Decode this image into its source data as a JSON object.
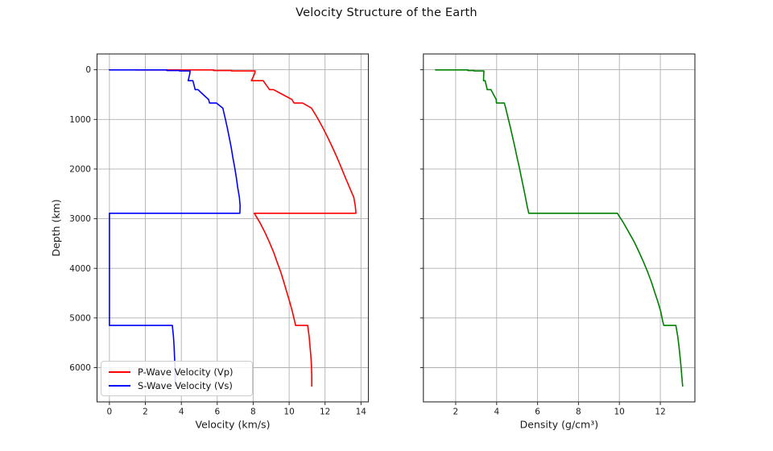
{
  "title": "Velocity Structure of the Earth",
  "colors": {
    "p_wave": "#ff0000",
    "s_wave": "#0000ff",
    "density": "#008000",
    "grid": "#b0b0b0",
    "spine": "#2b2b2b",
    "text": "#1a1a1a"
  },
  "chart_data": [
    {
      "type": "line",
      "title": "",
      "xlabel": "Velocity (km/s)",
      "ylabel": "Depth (km)",
      "xlim": [
        -0.69,
        14.41
      ],
      "ylim": [
        -318.6,
        6689.6
      ],
      "y_inverted": true,
      "grid": true,
      "xticks": [
        0,
        2,
        4,
        6,
        8,
        10,
        12,
        14
      ],
      "yticks": [
        0,
        1000,
        2000,
        3000,
        4000,
        5000,
        6000
      ],
      "show_ytick_labels": true,
      "legend_location": "lower left",
      "depths_km": [
        0,
        3,
        3,
        15,
        15,
        24.4,
        24.4,
        80,
        220,
        220,
        310,
        400,
        400,
        500,
        600,
        670,
        670,
        771,
        971,
        1171,
        1371,
        1571,
        1771,
        1971,
        2171,
        2371,
        2571,
        2741,
        2891,
        2891,
        3071,
        3271,
        3471,
        3671,
        3871,
        4071,
        4271,
        4471,
        4671,
        4871,
        5071,
        5149.5,
        5149.5,
        5371,
        5571,
        5771,
        5971,
        6171,
        6371
      ],
      "series": [
        {
          "id": "p-wave",
          "name": "P-Wave Velocity (Vp)",
          "color": "#ff0000",
          "values": [
            1.45,
            1.45,
            5.8,
            5.8,
            6.8,
            6.8,
            8.11,
            8.08,
            7.9,
            8.56,
            8.73,
            8.91,
            9.13,
            9.65,
            10.16,
            10.27,
            10.75,
            11.24,
            11.58,
            11.88,
            12.16,
            12.42,
            12.67,
            12.9,
            13.13,
            13.36,
            13.6,
            13.68,
            13.72,
            8.06,
            8.36,
            8.65,
            8.9,
            9.13,
            9.33,
            9.53,
            9.7,
            9.86,
            10.03,
            10.18,
            10.31,
            10.36,
            11.03,
            11.11,
            11.16,
            11.21,
            11.24,
            11.26,
            11.26
          ]
        },
        {
          "id": "s-wave",
          "name": "S-Wave Velocity (Vs)",
          "color": "#0000ff",
          "values": [
            0,
            0,
            3.2,
            3.2,
            3.9,
            3.9,
            4.49,
            4.47,
            4.38,
            4.64,
            4.71,
            4.77,
            4.93,
            5.22,
            5.52,
            5.57,
            5.95,
            6.31,
            6.44,
            6.56,
            6.67,
            6.78,
            6.87,
            6.97,
            7.06,
            7.14,
            7.23,
            7.27,
            7.26,
            0,
            0,
            0,
            0,
            0,
            0,
            0,
            0,
            0,
            0,
            0,
            0,
            0,
            3.5,
            3.56,
            3.6,
            3.62,
            3.65,
            3.66,
            3.67
          ]
        }
      ]
    },
    {
      "type": "line",
      "title": "",
      "xlabel": "Density (g/cm³)",
      "ylabel": "",
      "xlim": [
        0.42,
        13.69
      ],
      "ylim": [
        -318.6,
        6689.6
      ],
      "y_inverted": true,
      "grid": true,
      "xticks": [
        2,
        4,
        6,
        8,
        10,
        12
      ],
      "yticks": [
        0,
        1000,
        2000,
        3000,
        4000,
        5000,
        6000
      ],
      "show_ytick_labels": false,
      "legend_location": null,
      "depths_km": [
        0,
        3,
        3,
        15,
        15,
        24.4,
        24.4,
        80,
        220,
        220,
        310,
        400,
        400,
        500,
        600,
        670,
        670,
        771,
        971,
        1171,
        1371,
        1571,
        1771,
        1971,
        2171,
        2371,
        2571,
        2741,
        2891,
        2891,
        3071,
        3271,
        3471,
        3671,
        3871,
        4071,
        4271,
        4471,
        4671,
        4871,
        5071,
        5149.5,
        5149.5,
        5371,
        5571,
        5771,
        5971,
        6171,
        6371
      ],
      "series": [
        {
          "id": "density",
          "name": "Density",
          "color": "#008000",
          "values": [
            1.02,
            1.02,
            2.6,
            2.6,
            2.9,
            2.9,
            3.38,
            3.37,
            3.36,
            3.44,
            3.49,
            3.54,
            3.72,
            3.85,
            3.98,
            3.99,
            4.38,
            4.44,
            4.56,
            4.68,
            4.79,
            4.9,
            5.0,
            5.11,
            5.21,
            5.31,
            5.41,
            5.49,
            5.57,
            9.9,
            10.18,
            10.46,
            10.73,
            10.96,
            11.18,
            11.38,
            11.56,
            11.72,
            11.88,
            12.02,
            12.12,
            12.17,
            12.76,
            12.85,
            12.91,
            12.96,
            13.01,
            13.05,
            13.09
          ]
        }
      ]
    }
  ]
}
